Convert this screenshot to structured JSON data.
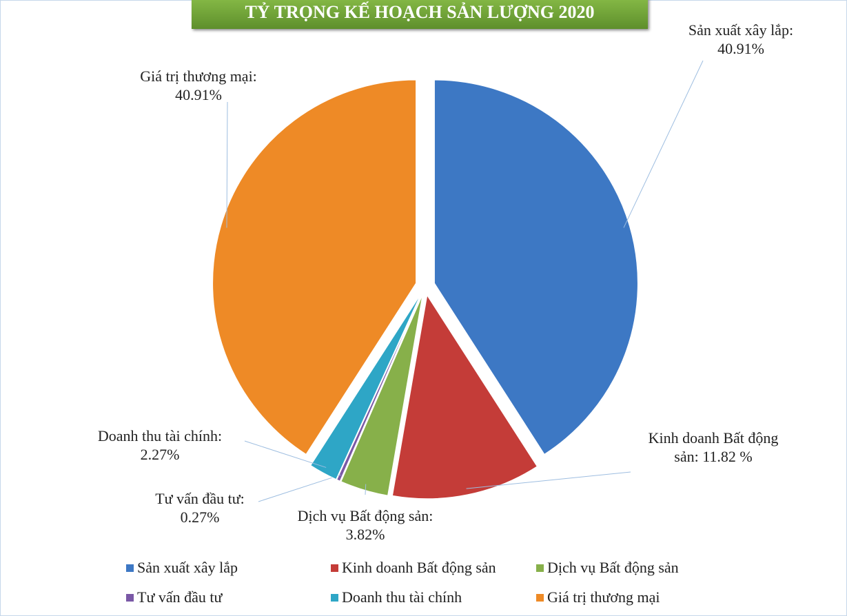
{
  "chart_data": {
    "type": "pie",
    "title": "TỶ TRỌNG KẾ HOẠCH SẢN LƯỢNG 2020",
    "categories": [
      "Sản xuất xây lắp",
      "Kinh doanh Bất động sản",
      "Dịch vụ Bất động sản",
      "Tư vấn đầu tư",
      "Doanh thu tài chính",
      "Giá trị thương mại"
    ],
    "values": [
      40.91,
      11.82,
      3.82,
      0.27,
      2.27,
      40.91
    ],
    "value_labels": [
      "Sản xuất xây lắp: 40.91%",
      "Kinh doanh Bất động sản: 11.82 %",
      "Dịch vụ Bất động sản: 3.82%",
      "Tư vấn đầu tư: 0.27%",
      "Doanh thu tài chính: 2.27%",
      "Giá trị thương mại: 40.91%"
    ],
    "colors": [
      "#3d78c4",
      "#c43c38",
      "#87b04a",
      "#7a58a6",
      "#2ea6c6",
      "#ee8a26"
    ],
    "legend": "bottom"
  }
}
